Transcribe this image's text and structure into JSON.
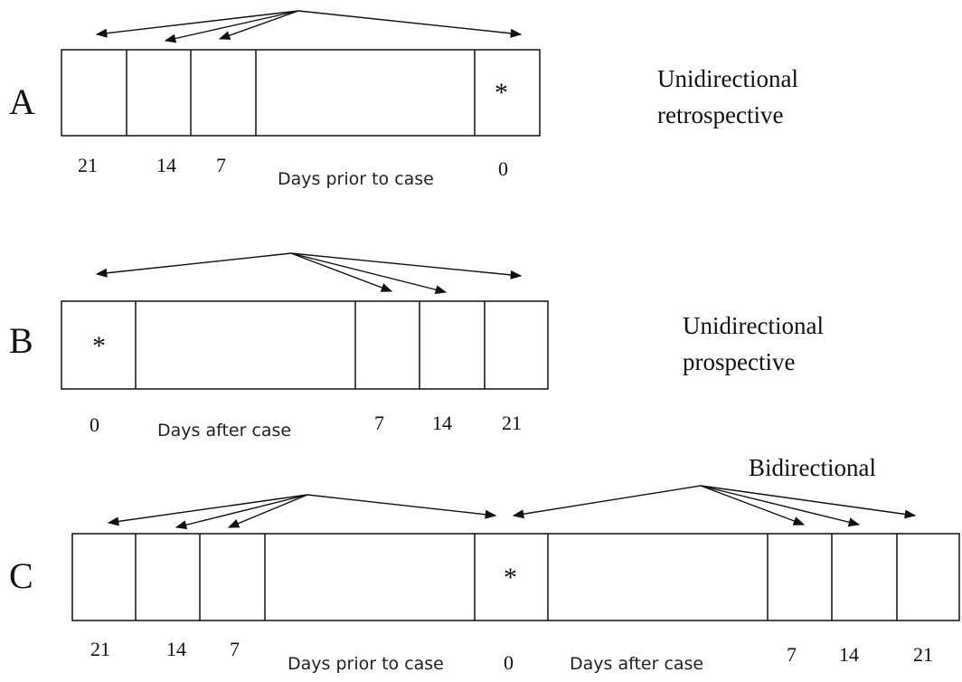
{
  "panels": [
    {
      "label": "A",
      "marker": "*",
      "description": [
        "Unidirectional",
        "retrospective"
      ],
      "ticks": [
        "21",
        "14",
        "7",
        "0"
      ],
      "caption": "Days prior to case"
    },
    {
      "label": "B",
      "marker": "*",
      "description": [
        "Unidirectional",
        "prospective"
      ],
      "ticks": [
        "0",
        "7",
        "14",
        "21"
      ],
      "caption": "Days after case"
    },
    {
      "label": "C",
      "marker": "*",
      "description": [
        "Bidirectional"
      ],
      "ticks": [
        "21",
        "14",
        "7",
        "0",
        "7",
        "14",
        "21"
      ],
      "captions": [
        "Days prior to case",
        "Days after case"
      ]
    }
  ]
}
